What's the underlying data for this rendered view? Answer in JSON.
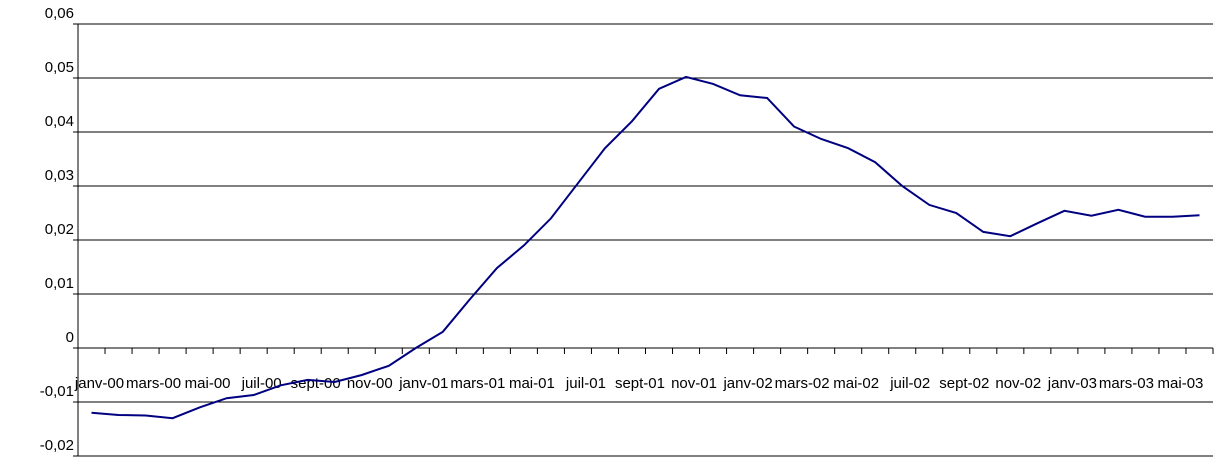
{
  "chart_data": {
    "type": "line",
    "categories": [
      "janv-00",
      null,
      "mars-00",
      null,
      "mai-00",
      null,
      "juil-00",
      null,
      "sept-00",
      null,
      "nov-00",
      null,
      "janv-01",
      null,
      "mars-01",
      null,
      "mai-01",
      null,
      "juil-01",
      null,
      "sept-01",
      null,
      "nov-01",
      null,
      "janv-02",
      null,
      "mars-02",
      null,
      "mai-02",
      null,
      "juil-02",
      null,
      "sept-02",
      null,
      "nov-02",
      null,
      "janv-03",
      null,
      "mars-03",
      null,
      "mai-03",
      null
    ],
    "values": [
      -0.012,
      -0.0124,
      -0.0125,
      -0.013,
      -0.011,
      -0.0093,
      -0.0087,
      -0.0069,
      -0.0059,
      -0.0063,
      -0.005,
      -0.0033,
      0,
      0.003,
      0.009,
      0.0148,
      0.019,
      0.024,
      0.0305,
      0.037,
      0.042,
      0.048,
      0.0502,
      0.0489,
      0.0468,
      0.0463,
      0.041,
      0.0387,
      0.037,
      0.0344,
      0.03,
      0.0265,
      0.025,
      0.0215,
      0.0207,
      0.0231,
      0.0254,
      0.0245,
      0.0256,
      0.0243,
      0.0243,
      0.0246
    ],
    "color": "#000080",
    "ylim": [
      -0.02,
      0.06
    ],
    "yticks": [
      {
        "value": -0.02,
        "label": "-0,02"
      },
      {
        "value": -0.01,
        "label": "-0,01"
      },
      0,
      {
        "value": 0.01,
        "label": "0,01"
      },
      {
        "value": 0.02,
        "label": "0,02"
      },
      {
        "value": 0.03,
        "label": "0,03"
      },
      {
        "value": 0.04,
        "label": "0,04"
      },
      {
        "value": 0.05,
        "label": "0,05"
      },
      {
        "value": 0.06,
        "label": "0,06"
      }
    ],
    "grid": true
  }
}
